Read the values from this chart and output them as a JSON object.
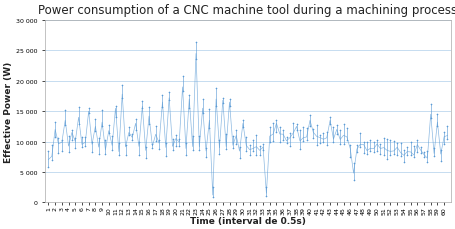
{
  "title": "Power consumption of a CNC machine tool during a machining process",
  "xlabel": "Time (interval de 0.5s)",
  "ylabel": "Effective Power (W)",
  "ylim": [
    0,
    30000
  ],
  "yticks": [
    0,
    5000,
    10000,
    15000,
    20000,
    25000,
    30000
  ],
  "ytick_labels": [
    "0",
    "5 000",
    "10 000",
    "15 000",
    "20 000",
    "25 000",
    "30 000"
  ],
  "line_color": "#5b9bd5",
  "bg_color": "#ffffff",
  "grid_color": "#bdd7ee",
  "title_fontsize": 8.5,
  "axis_label_fontsize": 6.5,
  "tick_fontsize": 4.5,
  "num_points": 120
}
